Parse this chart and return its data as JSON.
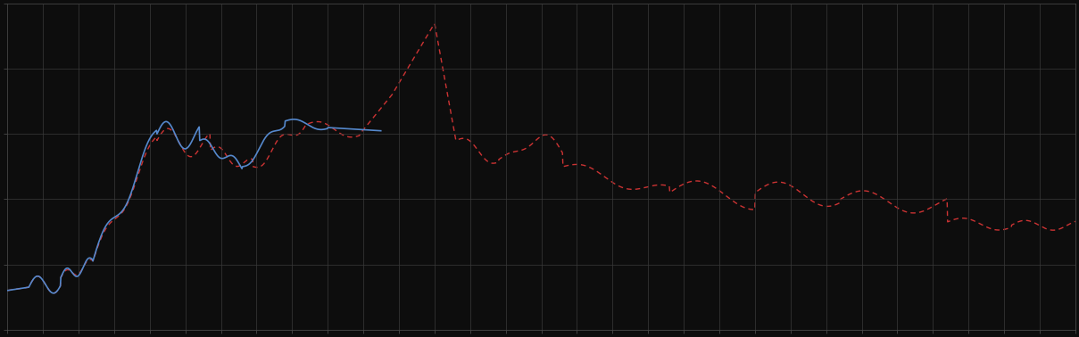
{
  "background_color": "#0d0d0d",
  "axes_background": "#0d0d0d",
  "grid_color": "#3a3a3a",
  "blue_line_color": "#5588cc",
  "red_line_color": "#cc3333",
  "figsize": [
    12.09,
    3.78
  ],
  "dpi": 100,
  "xlim": [
    0,
    100
  ],
  "ylim": [
    0,
    10
  ],
  "spine_color": "#555555",
  "x_ticks": [
    0,
    3.33,
    6.67,
    10,
    13.33,
    16.67,
    20,
    23.33,
    26.67,
    30,
    33.33,
    36.67,
    40,
    43.33,
    46.67,
    50,
    53.33,
    56.67,
    60,
    63.33,
    66.67,
    70,
    73.33,
    76.67,
    80,
    83.33,
    86.67,
    90,
    93.33,
    96.67,
    100
  ],
  "y_ticks": [
    0,
    2,
    4,
    6,
    8,
    10
  ],
  "blue_end_pct": 35
}
